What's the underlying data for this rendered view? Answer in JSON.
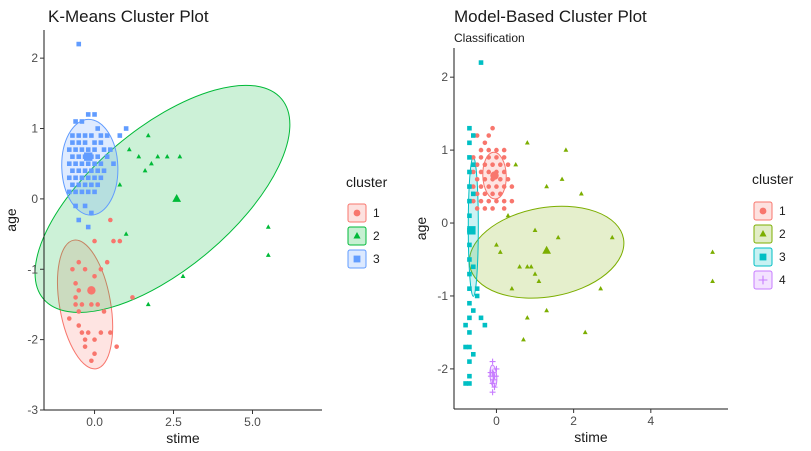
{
  "chart_data": [
    {
      "type": "scatter",
      "title": "K-Means Cluster Plot",
      "subtitle": "",
      "xlabel": "stime",
      "ylabel": "age",
      "xlim": [
        -1.6,
        7.2
      ],
      "ylim": [
        -3,
        2.4
      ],
      "xticks": [
        0,
        2.5,
        5
      ],
      "xtick_labels": [
        "0.0",
        "2.5",
        "5.0"
      ],
      "yticks": [
        -3,
        -2,
        -1,
        0,
        1,
        2
      ],
      "ytick_labels": [
        "-3",
        "-2",
        "-1",
        "0",
        "1",
        "2"
      ],
      "grid": false,
      "legend": {
        "title": "cluster",
        "placement": "right"
      },
      "series": [
        {
          "name": "1",
          "color": "#f8766d",
          "shape": "circle",
          "points": [
            [
              -0.5,
              -0.9
            ],
            [
              -0.7,
              -1.0
            ],
            [
              -0.3,
              -1.0
            ],
            [
              -0.6,
              -1.2
            ],
            [
              0.2,
              -1.0
            ],
            [
              0.0,
              -0.6
            ],
            [
              0.6,
              -0.6
            ],
            [
              0.8,
              -0.6
            ],
            [
              0.4,
              -0.9
            ],
            [
              -0.5,
              -1.3
            ],
            [
              -0.6,
              -1.5
            ],
            [
              -0.4,
              -1.5
            ],
            [
              -0.1,
              -1.5
            ],
            [
              0.1,
              -1.5
            ],
            [
              0.3,
              -1.6
            ],
            [
              -0.5,
              -1.6
            ],
            [
              -0.8,
              -1.7
            ],
            [
              -0.5,
              -1.8
            ],
            [
              -0.4,
              -1.9
            ],
            [
              -0.2,
              -1.9
            ],
            [
              -0.3,
              -2.0
            ],
            [
              0.0,
              -2.0
            ],
            [
              0.2,
              -1.9
            ],
            [
              0.5,
              -1.9
            ],
            [
              -0.3,
              -2.1
            ],
            [
              0.0,
              -2.2
            ],
            [
              -0.1,
              -2.3
            ],
            [
              0.7,
              -2.1
            ],
            [
              1.2,
              -1.4
            ],
            [
              0.0,
              -1.1
            ],
            [
              0.5,
              -0.3
            ],
            [
              -0.6,
              -1.4
            ]
          ],
          "center": [
            -0.1,
            -1.3
          ],
          "ellipse": {
            "cx": -0.3,
            "cy": -1.5,
            "rx": 1.28,
            "ry": 0.5,
            "angle_deg": 80
          }
        },
        {
          "name": "2",
          "color": "#00ba38",
          "shape": "triangle",
          "points": [
            [
              1.1,
              0.7
            ],
            [
              1.7,
              0.9
            ],
            [
              1.4,
              0.6
            ],
            [
              1.8,
              0.5
            ],
            [
              2.0,
              0.6
            ],
            [
              2.3,
              0.6
            ],
            [
              2.7,
              0.6
            ],
            [
              1.6,
              0.4
            ],
            [
              0.8,
              0.2
            ],
            [
              1.0,
              -0.5
            ],
            [
              1.7,
              -1.5
            ],
            [
              2.8,
              -1.1
            ],
            [
              5.5,
              -0.4
            ],
            [
              5.5,
              -0.8
            ]
          ],
          "center": [
            2.6,
            0.0
          ],
          "ellipse": {
            "cx": 2.15,
            "cy": 0.0,
            "rx": 3.05,
            "ry": 1.38,
            "angle_deg": -40
          }
        },
        {
          "name": "3",
          "color": "#619cff",
          "shape": "square",
          "points": [
            [
              -0.5,
              2.2
            ],
            [
              -0.6,
              1.1
            ],
            [
              -0.4,
              1.1
            ],
            [
              -0.2,
              1.2
            ],
            [
              0.0,
              1.2
            ],
            [
              0.1,
              1.0
            ],
            [
              -0.7,
              0.9
            ],
            [
              -0.5,
              0.9
            ],
            [
              -0.3,
              0.9
            ],
            [
              -0.1,
              0.9
            ],
            [
              0.2,
              0.9
            ],
            [
              0.4,
              0.9
            ],
            [
              -0.7,
              0.8
            ],
            [
              -0.5,
              0.8
            ],
            [
              -0.3,
              0.8
            ],
            [
              0.0,
              0.8
            ],
            [
              0.2,
              0.8
            ],
            [
              -0.8,
              0.7
            ],
            [
              -0.6,
              0.7
            ],
            [
              -0.4,
              0.7
            ],
            [
              -0.2,
              0.7
            ],
            [
              0.0,
              0.7
            ],
            [
              0.3,
              0.7
            ],
            [
              0.5,
              0.7
            ],
            [
              -0.7,
              0.6
            ],
            [
              -0.5,
              0.6
            ],
            [
              -0.3,
              0.6
            ],
            [
              -0.1,
              0.6
            ],
            [
              0.1,
              0.6
            ],
            [
              0.4,
              0.6
            ],
            [
              -0.8,
              0.5
            ],
            [
              -0.6,
              0.5
            ],
            [
              -0.4,
              0.5
            ],
            [
              -0.2,
              0.5
            ],
            [
              0.0,
              0.5
            ],
            [
              0.2,
              0.5
            ],
            [
              0.6,
              0.5
            ],
            [
              -0.7,
              0.4
            ],
            [
              -0.5,
              0.4
            ],
            [
              -0.3,
              0.4
            ],
            [
              -0.1,
              0.4
            ],
            [
              0.1,
              0.4
            ],
            [
              0.3,
              0.4
            ],
            [
              -0.8,
              0.3
            ],
            [
              -0.6,
              0.3
            ],
            [
              -0.4,
              0.3
            ],
            [
              -0.2,
              0.3
            ],
            [
              0.0,
              0.3
            ],
            [
              0.2,
              0.3
            ],
            [
              -0.7,
              0.2
            ],
            [
              -0.5,
              0.2
            ],
            [
              -0.3,
              0.2
            ],
            [
              -0.1,
              0.2
            ],
            [
              0.1,
              0.2
            ],
            [
              -0.8,
              0.1
            ],
            [
              -0.6,
              0.1
            ],
            [
              -0.4,
              0.1
            ],
            [
              -0.2,
              0.1
            ],
            [
              0.0,
              0.1
            ],
            [
              -0.6,
              -0.1
            ],
            [
              -0.3,
              -0.1
            ],
            [
              -0.1,
              -0.2
            ],
            [
              -0.5,
              -0.3
            ],
            [
              -0.2,
              -0.4
            ],
            [
              0.8,
              0.9
            ],
            [
              1.0,
              1.0
            ]
          ],
          "center": [
            -0.2,
            0.6
          ],
          "ellipse": {
            "cx": -0.15,
            "cy": 0.45,
            "rx": 0.94,
            "ry": 0.55,
            "angle_deg": 88
          }
        }
      ]
    },
    {
      "type": "scatter",
      "title": "Model-Based Cluster Plot",
      "subtitle": "Classification",
      "xlabel": "stime",
      "ylabel": "age",
      "xlim": [
        -1.1,
        6.0
      ],
      "ylim": [
        -2.55,
        2.4
      ],
      "xticks": [
        0,
        2,
        4
      ],
      "xtick_labels": [
        "0",
        "2",
        "4"
      ],
      "yticks": [
        -2,
        -1,
        0,
        1,
        2
      ],
      "ytick_labels": [
        "-2",
        "-1",
        "0",
        "1",
        "2"
      ],
      "grid": false,
      "legend": {
        "title": "cluster",
        "placement": "right"
      },
      "series": [
        {
          "name": "1",
          "color": "#f8766d",
          "shape": "circle",
          "points": [
            [
              -0.5,
              1.2
            ],
            [
              -0.3,
              1.1
            ],
            [
              -0.1,
              1.3
            ],
            [
              -0.2,
              1.2
            ],
            [
              -0.4,
              1.0
            ],
            [
              -0.2,
              1.0
            ],
            [
              0.0,
              1.0
            ],
            [
              0.2,
              1.0
            ],
            [
              -0.6,
              0.9
            ],
            [
              -0.4,
              0.9
            ],
            [
              -0.2,
              0.9
            ],
            [
              0.0,
              0.9
            ],
            [
              0.2,
              0.9
            ],
            [
              -0.5,
              0.8
            ],
            [
              -0.3,
              0.8
            ],
            [
              -0.1,
              0.8
            ],
            [
              0.1,
              0.8
            ],
            [
              0.3,
              0.8
            ],
            [
              -0.6,
              0.7
            ],
            [
              -0.4,
              0.7
            ],
            [
              -0.2,
              0.7
            ],
            [
              0.0,
              0.7
            ],
            [
              0.2,
              0.7
            ],
            [
              -0.5,
              0.6
            ],
            [
              -0.3,
              0.6
            ],
            [
              -0.1,
              0.6
            ],
            [
              0.1,
              0.6
            ],
            [
              0.3,
              0.6
            ],
            [
              -0.6,
              0.5
            ],
            [
              -0.4,
              0.5
            ],
            [
              -0.2,
              0.5
            ],
            [
              0.0,
              0.5
            ],
            [
              0.2,
              0.5
            ],
            [
              0.4,
              0.5
            ],
            [
              -0.5,
              0.4
            ],
            [
              -0.3,
              0.4
            ],
            [
              -0.1,
              0.4
            ],
            [
              0.1,
              0.4
            ],
            [
              -0.6,
              0.3
            ],
            [
              -0.4,
              0.3
            ],
            [
              -0.2,
              0.3
            ],
            [
              0.0,
              0.3
            ],
            [
              0.2,
              0.3
            ],
            [
              0.4,
              0.3
            ],
            [
              -0.5,
              0.2
            ],
            [
              -0.3,
              0.2
            ],
            [
              -0.1,
              0.2
            ],
            [
              0.2,
              0.2
            ]
          ],
          "center": [
            -0.05,
            0.65
          ],
          "ellipse": {
            "cx": -0.05,
            "cy": 0.65,
            "rx": 0.42,
            "ry": 0.21,
            "angle_deg": 88
          }
        },
        {
          "name": "2",
          "color": "#7cae00",
          "shape": "triangle",
          "points": [
            [
              0.8,
              1.1
            ],
            [
              1.8,
              1.0
            ],
            [
              0.5,
              0.8
            ],
            [
              1.7,
              0.6
            ],
            [
              2.2,
              0.4
            ],
            [
              1.3,
              0.5
            ],
            [
              0.3,
              0.1
            ],
            [
              0.0,
              -0.3
            ],
            [
              0.1,
              -0.4
            ],
            [
              0.8,
              -0.6
            ],
            [
              0.6,
              -0.6
            ],
            [
              0.9,
              -0.6
            ],
            [
              1.0,
              -0.7
            ],
            [
              1.1,
              -0.8
            ],
            [
              0.4,
              -0.9
            ],
            [
              0.8,
              -1.3
            ],
            [
              1.3,
              -1.2
            ],
            [
              0.7,
              -1.6
            ],
            [
              2.3,
              -1.5
            ],
            [
              2.7,
              -0.9
            ],
            [
              1.0,
              -0.1
            ],
            [
              1.6,
              -0.2
            ],
            [
              5.6,
              -0.4
            ],
            [
              5.6,
              -0.8
            ],
            [
              3.0,
              -0.2
            ]
          ],
          "center": [
            1.3,
            -0.38
          ],
          "ellipse": {
            "cx": 1.3,
            "cy": -0.4,
            "rx": 1.4,
            "ry": 0.8,
            "angle_deg": -10
          }
        },
        {
          "name": "3",
          "color": "#00bfc4",
          "shape": "square",
          "points": [
            [
              -0.4,
              2.2
            ],
            [
              -0.7,
              1.3
            ],
            [
              -0.7,
              1.1
            ],
            [
              -0.7,
              0.9
            ],
            [
              -0.7,
              0.7
            ],
            [
              -0.7,
              0.5
            ],
            [
              -0.7,
              0.3
            ],
            [
              -0.7,
              0.1
            ],
            [
              -0.7,
              -0.1
            ],
            [
              -0.7,
              -0.3
            ],
            [
              -0.7,
              -0.5
            ],
            [
              -0.7,
              -0.7
            ],
            [
              -0.7,
              -0.9
            ],
            [
              -0.7,
              -1.1
            ],
            [
              -0.7,
              -1.3
            ],
            [
              -0.7,
              -1.5
            ],
            [
              -0.7,
              -1.7
            ],
            [
              -0.7,
              -1.9
            ],
            [
              -0.7,
              -2.1
            ],
            [
              -0.6,
              1.2
            ],
            [
              -0.6,
              0.8
            ],
            [
              -0.6,
              0.4
            ],
            [
              -0.6,
              -0.6
            ],
            [
              -0.6,
              -1.2
            ],
            [
              -0.6,
              -1.8
            ],
            [
              -0.5,
              -0.9
            ],
            [
              -0.5,
              -1.0
            ],
            [
              -0.4,
              -1.3
            ],
            [
              -0.3,
              -1.4
            ],
            [
              -0.8,
              -1.4
            ],
            [
              -0.8,
              -1.7
            ],
            [
              -0.7,
              -2.2
            ],
            [
              -0.8,
              -2.2
            ]
          ],
          "center": [
            -0.65,
            -0.1
          ],
          "ellipse": {
            "cx": -0.6,
            "cy": -0.05,
            "rx": 1.25,
            "ry": 0.09,
            "angle_deg": 90
          }
        },
        {
          "name": "4",
          "color": "#c77cff",
          "shape": "plus",
          "points": [
            [
              -0.1,
              -1.9
            ],
            [
              0.0,
              -2.0
            ],
            [
              -0.1,
              -2.05
            ],
            [
              -0.05,
              -2.1
            ],
            [
              -0.08,
              -2.15
            ],
            [
              -0.1,
              -2.2
            ],
            [
              -0.05,
              -2.25
            ],
            [
              -0.1,
              -2.32
            ],
            [
              -0.15,
              -2.05
            ]
          ],
          "center": [
            -0.08,
            -2.1
          ],
          "ellipse": {
            "cx": -0.08,
            "cy": -2.1,
            "rx": 0.2,
            "ry": 0.06,
            "angle_deg": 85
          }
        }
      ]
    }
  ]
}
